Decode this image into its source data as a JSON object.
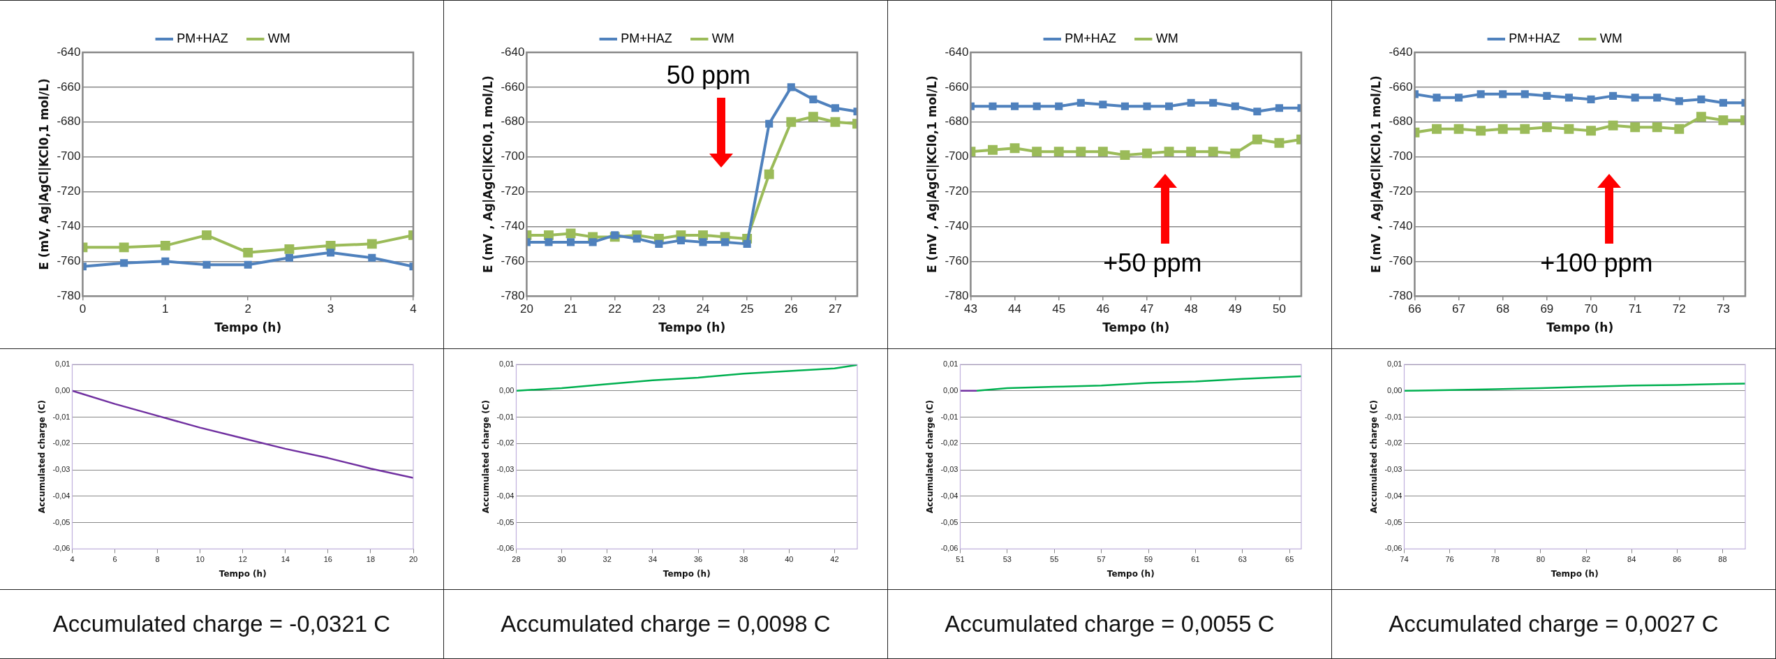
{
  "chart_data": [
    {
      "type": "line",
      "xlabel": "Tempo (h)",
      "ylabel": "E (mV, Ag|AgCl|KCl0,1 mol/L)",
      "xlim": [
        0,
        4
      ],
      "xticks": [
        0,
        1,
        2,
        3,
        4
      ],
      "ylim": [
        -780,
        -640
      ],
      "yticks": [
        -780,
        -760,
        -740,
        -720,
        -700,
        -680,
        -660,
        -640
      ],
      "grid": "y",
      "legend": "top",
      "marker": "square",
      "line_style": "solid",
      "x": [
        0,
        0.5,
        1,
        1.5,
        2,
        2.5,
        3,
        3.5,
        4
      ],
      "series": [
        {
          "name": "PM+HAZ",
          "color": "#4f81bd",
          "values": [
            -763,
            -761,
            -760,
            -762,
            -762,
            -758,
            -755,
            -758,
            -763
          ]
        },
        {
          "name": "WM",
          "color": "#9bbb59",
          "values": [
            -752,
            -752,
            -751,
            -745,
            -755,
            -753,
            -751,
            -750,
            -745
          ]
        }
      ]
    },
    {
      "type": "line",
      "xlabel": "Tempo (h)",
      "ylabel": "E (mV , Ag|AgCl|KCl0,1 mol/L)",
      "xlim": [
        20,
        27.5
      ],
      "xticks": [
        20,
        21,
        22,
        23,
        24,
        25,
        26,
        27
      ],
      "ylim": [
        -780,
        -640
      ],
      "yticks": [
        -780,
        -760,
        -740,
        -720,
        -700,
        -680,
        -660,
        -640
      ],
      "grid": "y",
      "legend": "top",
      "marker": "square",
      "line_style": "solid",
      "x": [
        20,
        20.5,
        21,
        21.5,
        22,
        22.5,
        23,
        23.5,
        24,
        24.5,
        25,
        25.5,
        26,
        26.5,
        27,
        27.5
      ],
      "series": [
        {
          "name": "PM+HAZ",
          "color": "#4f81bd",
          "values": [
            -749,
            -749,
            -749,
            -749,
            -745,
            -747,
            -750,
            -748,
            -749,
            -749,
            -750,
            -681,
            -660,
            -667,
            -672,
            -674
          ]
        },
        {
          "name": "WM",
          "color": "#9bbb59",
          "values": [
            -745,
            -745,
            -744,
            -746,
            -746,
            -745,
            -747,
            -745,
            -745,
            -746,
            -747,
            -710,
            -680,
            -677,
            -680,
            -681
          ]
        }
      ],
      "annotations": [
        "50 ppm"
      ]
    },
    {
      "type": "line",
      "xlabel": "Tempo (h)",
      "ylabel": "E (mV , Ag|AgCl|KCl0,1 mol/L)",
      "xlim": [
        43,
        50.5
      ],
      "xticks": [
        43,
        44,
        45,
        46,
        47,
        48,
        49,
        50
      ],
      "ylim": [
        -780,
        -640
      ],
      "yticks": [
        -780,
        -760,
        -740,
        -720,
        -700,
        -680,
        -660,
        -640
      ],
      "grid": "y",
      "legend": "top",
      "marker": "square",
      "line_style": "solid",
      "x": [
        43,
        43.5,
        44,
        44.5,
        45,
        45.5,
        46,
        46.5,
        47,
        47.5,
        48,
        48.5,
        49,
        49.5,
        50,
        50.5
      ],
      "series": [
        {
          "name": "PM+HAZ",
          "color": "#4f81bd",
          "values": [
            -671,
            -671,
            -671,
            -671,
            -671,
            -669,
            -670,
            -671,
            -671,
            -671,
            -669,
            -669,
            -671,
            -674,
            -672,
            -672
          ]
        },
        {
          "name": "WM",
          "color": "#9bbb59",
          "values": [
            -697,
            -696,
            -695,
            -697,
            -697,
            -697,
            -697,
            -699,
            -698,
            -697,
            -697,
            -697,
            -698,
            -690,
            -692,
            -690
          ]
        }
      ],
      "annotations": [
        "+50 ppm"
      ]
    },
    {
      "type": "line",
      "xlabel": "Tempo (h)",
      "ylabel": "E (mV , Ag|AgCl|KCl0,1 mol/L)",
      "xlim": [
        66,
        73.5
      ],
      "xticks": [
        66,
        67,
        68,
        69,
        70,
        71,
        72,
        73
      ],
      "ylim": [
        -780,
        -640
      ],
      "yticks": [
        -780,
        -760,
        -740,
        -720,
        -700,
        -680,
        -660,
        -640
      ],
      "grid": "y",
      "legend": "top",
      "marker": "square",
      "line_style": "solid",
      "x": [
        66,
        66.5,
        67,
        67.5,
        68,
        68.5,
        69,
        69.5,
        70,
        70.5,
        71,
        71.5,
        72,
        72.5,
        73,
        73.5
      ],
      "series": [
        {
          "name": "PM+HAZ",
          "color": "#4f81bd",
          "values": [
            -664,
            -666,
            -666,
            -664,
            -664,
            -664,
            -665,
            -666,
            -667,
            -665,
            -666,
            -666,
            -668,
            -667,
            -669,
            -669
          ]
        },
        {
          "name": "WM",
          "color": "#9bbb59",
          "values": [
            -686,
            -684,
            -684,
            -685,
            -684,
            -684,
            -683,
            -684,
            -685,
            -682,
            -683,
            -683,
            -684,
            -677,
            -679,
            -679
          ]
        }
      ],
      "annotations": [
        "+100 ppm"
      ]
    },
    {
      "type": "line",
      "xlabel": "Tempo (h)",
      "ylabel": "Accumulated charge (C)",
      "xlim": [
        4,
        20
      ],
      "xticks": [
        4,
        6,
        8,
        10,
        12,
        14,
        16,
        18,
        20
      ],
      "ylim": [
        -0.06,
        0.01
      ],
      "yticks": [
        {
          "value": -0.06,
          "label": "-0,06"
        },
        {
          "value": -0.05,
          "label": "-0,05"
        },
        {
          "value": -0.04,
          "label": "-0,04"
        },
        {
          "value": -0.03,
          "label": "-0,03"
        },
        {
          "value": -0.02,
          "label": "-0,02"
        },
        {
          "value": -0.01,
          "label": "-0,01"
        },
        {
          "value": 0,
          "label": "0,00"
        },
        {
          "value": 0.01,
          "label": "0,01"
        }
      ],
      "grid": "y",
      "marker": "none",
      "line_style": "solid",
      "series": [
        {
          "color": "#7030a0",
          "x": [
            4,
            6,
            8,
            10,
            12,
            14,
            16,
            18,
            20
          ],
          "values": [
            0,
            -0.005,
            -0.0095,
            -0.014,
            -0.018,
            -0.022,
            -0.0255,
            -0.0295,
            -0.033
          ]
        }
      ],
      "annotations": [
        "Accumulated charge = -0,0321 C"
      ]
    },
    {
      "type": "line",
      "xlabel": "Tempo (h)",
      "ylabel": "Accumulated charge (C)",
      "xlim": [
        28,
        43
      ],
      "xticks": [
        28,
        30,
        32,
        34,
        36,
        38,
        40,
        42
      ],
      "ylim": [
        -0.06,
        0.01
      ],
      "yticks": [
        {
          "value": -0.06,
          "label": "-0,06"
        },
        {
          "value": -0.05,
          "label": "-0,05"
        },
        {
          "value": -0.04,
          "label": "-0,04"
        },
        {
          "value": -0.03,
          "label": "-0,03"
        },
        {
          "value": -0.02,
          "label": "-0,02"
        },
        {
          "value": -0.01,
          "label": "-0,01"
        },
        {
          "value": 0,
          "label": "0,00"
        },
        {
          "value": 0.01,
          "label": "0,01"
        }
      ],
      "grid": "y",
      "marker": "none",
      "line_style": "solid",
      "series": [
        {
          "color": "#00b050",
          "x": [
            28,
            30,
            32,
            34,
            36,
            38,
            40,
            42,
            43
          ],
          "values": [
            0,
            0.001,
            0.0025,
            0.004,
            0.005,
            0.0065,
            0.0075,
            0.0085,
            0.0098
          ]
        }
      ],
      "annotations": [
        "Accumulated charge = 0,0098 C"
      ]
    },
    {
      "type": "line",
      "xlabel": "Tempo (h)",
      "ylabel": "Accumulated charge (C)",
      "xlim": [
        51,
        65.5
      ],
      "xticks": [
        51,
        53,
        55,
        57,
        59,
        61,
        63,
        65
      ],
      "ylim": [
        -0.06,
        0.01
      ],
      "yticks": [
        {
          "value": -0.06,
          "label": "-0,06"
        },
        {
          "value": -0.05,
          "label": "-0,05"
        },
        {
          "value": -0.04,
          "label": "-0,04"
        },
        {
          "value": -0.03,
          "label": "-0,03"
        },
        {
          "value": -0.02,
          "label": "-0,02"
        },
        {
          "value": -0.01,
          "label": "-0,01"
        },
        {
          "value": 0,
          "label": "0,00"
        },
        {
          "value": 0.01,
          "label": "0,01"
        }
      ],
      "grid": "y",
      "marker": "none",
      "line_style": "solid",
      "series": [
        {
          "color": "#7030a0",
          "x": [
            51,
            51.7
          ],
          "values": [
            0,
            0
          ]
        },
        {
          "color": "#00b050",
          "x": [
            51.7,
            53,
            55,
            57,
            59,
            61,
            63,
            65.5
          ],
          "values": [
            0,
            0.001,
            0.0015,
            0.002,
            0.003,
            0.0035,
            0.0045,
            0.0055
          ]
        }
      ],
      "annotations": [
        "Accumulated charge = 0,0055 C"
      ]
    },
    {
      "type": "line",
      "xlabel": "Tempo (h)",
      "ylabel": "Accumulated charge (C)",
      "xlim": [
        74,
        89
      ],
      "xticks": [
        74,
        76,
        78,
        80,
        82,
        84,
        86,
        88
      ],
      "ylim": [
        -0.06,
        0.01
      ],
      "yticks": [
        {
          "value": -0.06,
          "label": "-0,06"
        },
        {
          "value": -0.05,
          "label": "-0,05"
        },
        {
          "value": -0.04,
          "label": "-0,04"
        },
        {
          "value": -0.03,
          "label": "-0,03"
        },
        {
          "value": -0.02,
          "label": "-0,02"
        },
        {
          "value": -0.01,
          "label": "-0,01"
        },
        {
          "value": 0,
          "label": "0,00"
        },
        {
          "value": 0.01,
          "label": "0,01"
        }
      ],
      "grid": "y",
      "marker": "none",
      "line_style": "solid",
      "series": [
        {
          "color": "#00b050",
          "x": [
            74,
            76,
            78,
            80,
            82,
            84,
            86,
            88,
            89
          ],
          "values": [
            0,
            0.0003,
            0.0006,
            0.001,
            0.0015,
            0.002,
            0.0022,
            0.0026,
            0.0027
          ]
        }
      ],
      "annotations": [
        "Accumulated charge = 0,0027 C"
      ]
    }
  ]
}
